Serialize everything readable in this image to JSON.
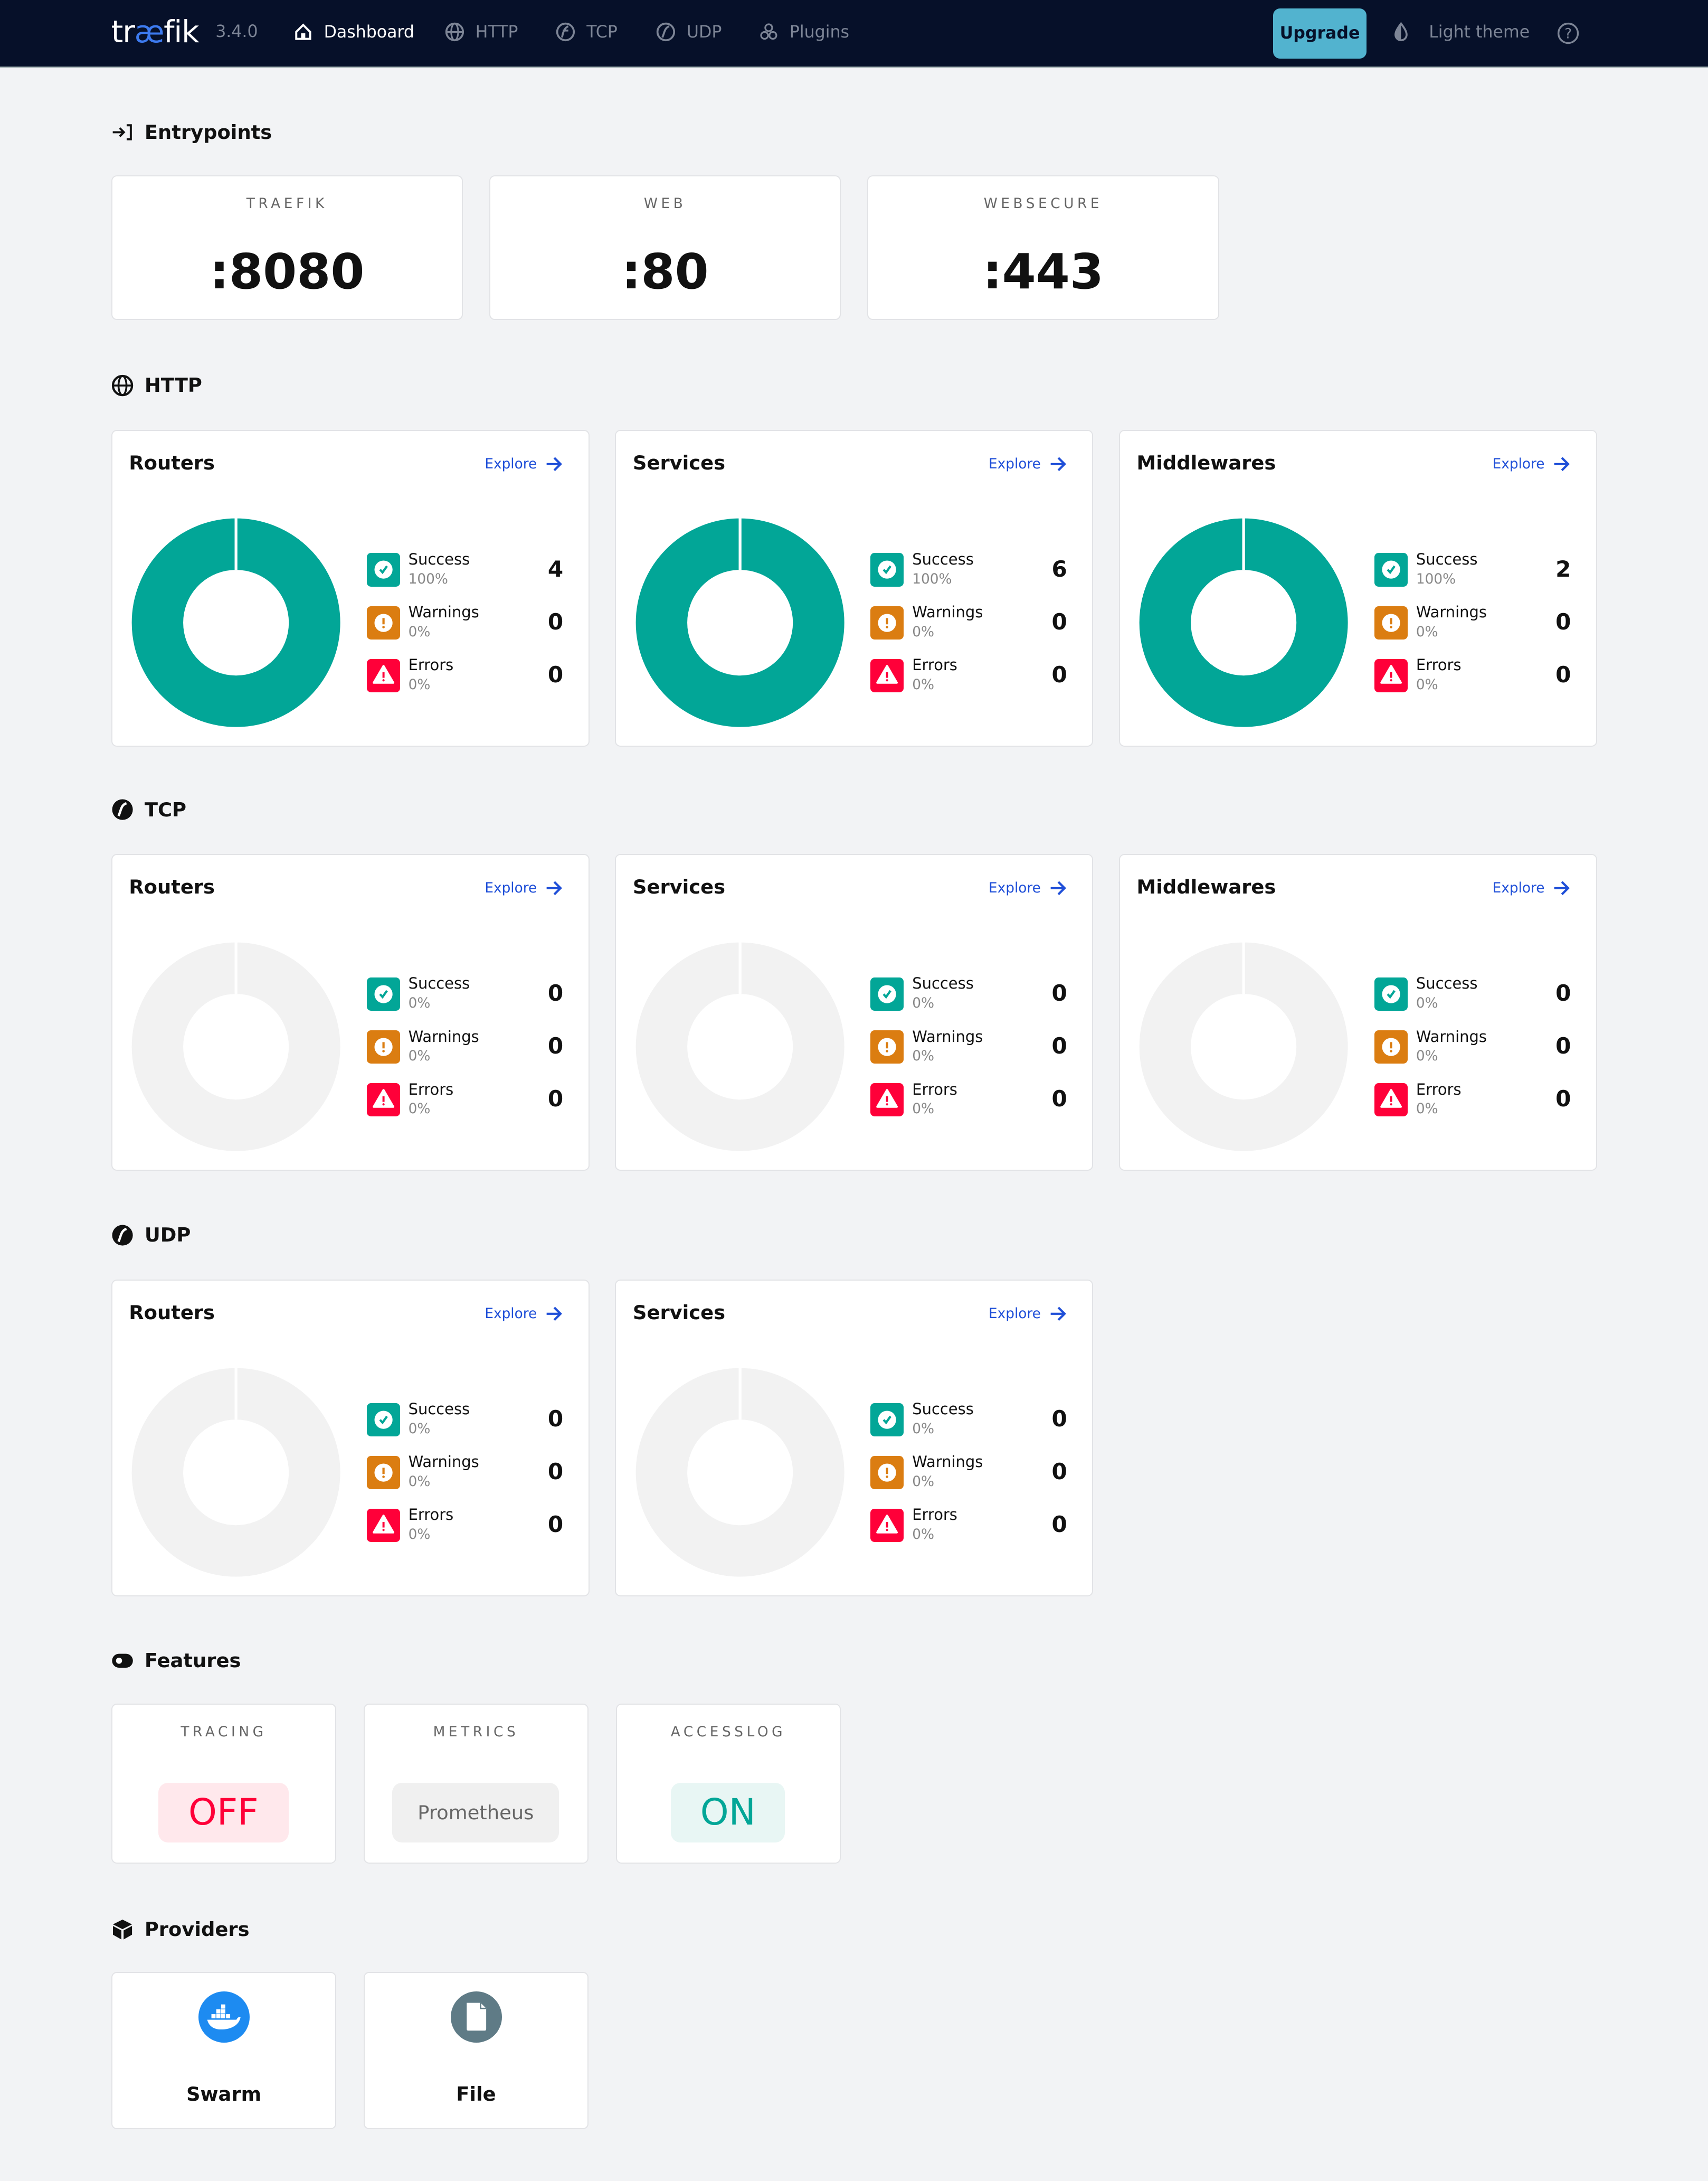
{
  "header": {
    "logo_prefix": "tr",
    "logo_accent": "æ",
    "logo_suffix": "fik",
    "version": "3.4.0",
    "nav": [
      {
        "label": "Dashboard",
        "icon": "home-icon",
        "active": true
      },
      {
        "label": "HTTP",
        "icon": "globe-icon",
        "active": false
      },
      {
        "label": "TCP",
        "icon": "tcp-icon",
        "active": false
      },
      {
        "label": "UDP",
        "icon": "udp-icon",
        "active": false
      },
      {
        "label": "Plugins",
        "icon": "plugins-icon",
        "active": false
      }
    ],
    "upgrade_label": "Upgrade",
    "theme_label": "Light theme",
    "help_icon": "help-icon"
  },
  "entrypoints": {
    "title": "Entrypoints",
    "items": [
      {
        "name": "TRAEFIK",
        "port": ":8080"
      },
      {
        "name": "WEB",
        "port": ":80"
      },
      {
        "name": "WEBSECURE",
        "port": ":443"
      }
    ]
  },
  "colors": {
    "success": "#02a697",
    "warning": "#db7d11",
    "error": "#ff0039",
    "empty": "#f2f2f2",
    "link": "#1f4fd8",
    "header": "#061029",
    "upgrade": "#52b3cf"
  },
  "legend_labels": {
    "success": "Success",
    "warnings": "Warnings",
    "errors": "Errors"
  },
  "explore_label": "Explore",
  "sections": [
    {
      "title": "HTTP",
      "icon": "globe-icon",
      "cards": [
        {
          "title": "Routers",
          "success": 4,
          "success_pct": "100%",
          "warnings": 0,
          "warnings_pct": "0%",
          "errors": 0,
          "errors_pct": "0%"
        },
        {
          "title": "Services",
          "success": 6,
          "success_pct": "100%",
          "warnings": 0,
          "warnings_pct": "0%",
          "errors": 0,
          "errors_pct": "0%"
        },
        {
          "title": "Middlewares",
          "success": 2,
          "success_pct": "100%",
          "warnings": 0,
          "warnings_pct": "0%",
          "errors": 0,
          "errors_pct": "0%"
        }
      ]
    },
    {
      "title": "TCP",
      "icon": "tcp-icon",
      "cards": [
        {
          "title": "Routers",
          "success": 0,
          "success_pct": "0%",
          "warnings": 0,
          "warnings_pct": "0%",
          "errors": 0,
          "errors_pct": "0%"
        },
        {
          "title": "Services",
          "success": 0,
          "success_pct": "0%",
          "warnings": 0,
          "warnings_pct": "0%",
          "errors": 0,
          "errors_pct": "0%"
        },
        {
          "title": "Middlewares",
          "success": 0,
          "success_pct": "0%",
          "warnings": 0,
          "warnings_pct": "0%",
          "errors": 0,
          "errors_pct": "0%"
        }
      ]
    },
    {
      "title": "UDP",
      "icon": "udp-icon",
      "cards": [
        {
          "title": "Routers",
          "success": 0,
          "success_pct": "0%",
          "warnings": 0,
          "warnings_pct": "0%",
          "errors": 0,
          "errors_pct": "0%"
        },
        {
          "title": "Services",
          "success": 0,
          "success_pct": "0%",
          "warnings": 0,
          "warnings_pct": "0%",
          "errors": 0,
          "errors_pct": "0%"
        }
      ]
    }
  ],
  "features": {
    "title": "Features",
    "items": [
      {
        "name": "TRACING",
        "value": "OFF",
        "state": "off"
      },
      {
        "name": "METRICS",
        "value": "Prometheus",
        "state": "neutral"
      },
      {
        "name": "ACCESSLOG",
        "value": "ON",
        "state": "on"
      }
    ]
  },
  "providers": {
    "title": "Providers",
    "items": [
      {
        "name": "Swarm",
        "icon": "docker-icon"
      },
      {
        "name": "File",
        "icon": "file-icon"
      }
    ]
  }
}
